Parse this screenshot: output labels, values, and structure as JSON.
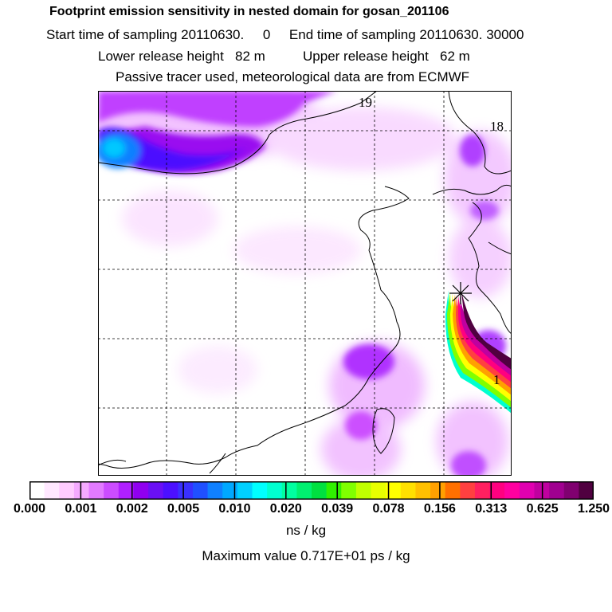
{
  "header": {
    "title": "Footprint emission sensitivity in nested domain for gosan_201106",
    "sampling_line": "Start time of sampling 20110630.     0     End time of sampling 20110630. 30000",
    "release_line": "Lower release height   82 m          Upper release height   62 m",
    "tracer_line": "Passive tracer used, meteorological data are from ECMWF"
  },
  "map": {
    "trajectory_labels": [
      "19",
      "18",
      "1"
    ],
    "release_marker": "receptor-star"
  },
  "legend": {
    "tick_labels": [
      "0.000",
      "0.001",
      "0.002",
      "0.005",
      "0.010",
      "0.020",
      "0.039",
      "0.078",
      "0.156",
      "0.313",
      "0.625",
      "1.250"
    ],
    "units": "ns / kg",
    "max_value": "Maximum value  0.717E+01 ps / kg",
    "colors": [
      "#ffffff",
      "#ffe8ff",
      "#ffccff",
      "#f5aaff",
      "#e27aff",
      "#cc4cff",
      "#b020ff",
      "#9000f0",
      "#6a10f5",
      "#4c10ff",
      "#3a30ff",
      "#2050ff",
      "#1080ff",
      "#00a8ff",
      "#00d0ff",
      "#00ffff",
      "#00ffd0",
      "#00ffa0",
      "#00f070",
      "#00e040",
      "#30f000",
      "#80ff00",
      "#c0ff00",
      "#e8ff00",
      "#ffff00",
      "#ffe000",
      "#ffc000",
      "#ffa000",
      "#ff7000",
      "#ff4040",
      "#ff2060",
      "#ff0080",
      "#ff00a0",
      "#e000b0",
      "#c000a0",
      "#a00090",
      "#800070",
      "#500040"
    ]
  }
}
